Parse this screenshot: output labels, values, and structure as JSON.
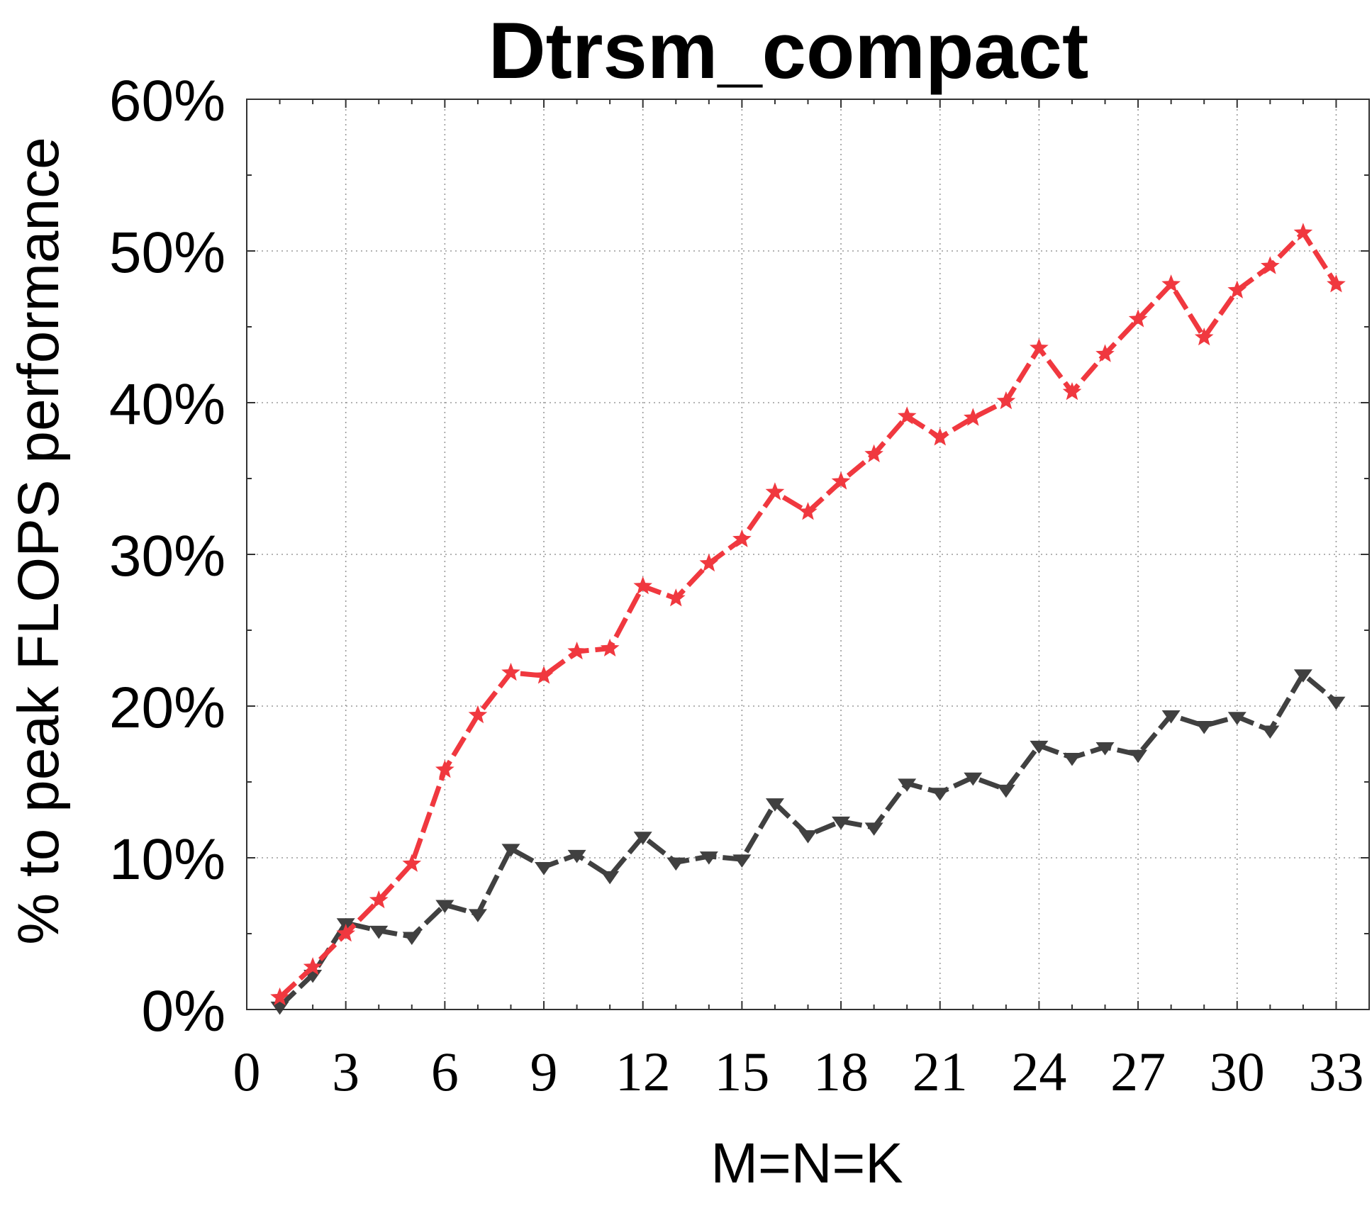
{
  "chart_data": {
    "type": "line",
    "title": "Dtrsm_compact",
    "xlabel": "M=N=K",
    "ylabel": "% to peak FLOPS performance",
    "xlim": [
      0,
      34
    ],
    "ylim": [
      0,
      60
    ],
    "xticks": [
      "0",
      "3",
      "6",
      "9",
      "12",
      "15",
      "18",
      "21",
      "24",
      "27",
      "30",
      "33"
    ],
    "yticks": [
      "0%",
      "10%",
      "20%",
      "30%",
      "40%",
      "50%",
      "60%"
    ],
    "grid": true,
    "x": [
      1,
      2,
      3,
      4,
      5,
      6,
      7,
      8,
      9,
      10,
      11,
      12,
      13,
      14,
      15,
      16,
      17,
      18,
      19,
      20,
      21,
      22,
      23,
      24,
      25,
      26,
      27,
      28,
      29,
      30,
      31,
      32,
      33
    ],
    "series": [
      {
        "color": "#f0383f",
        "marker": "star",
        "values": [
          0.8,
          2.8,
          5.0,
          7.2,
          9.6,
          15.8,
          19.4,
          22.2,
          22.0,
          23.6,
          23.8,
          27.9,
          27.1,
          29.4,
          31.0,
          34.1,
          32.8,
          34.8,
          36.6,
          39.1,
          37.7,
          39.0,
          40.1,
          43.6,
          40.7,
          43.2,
          45.5,
          47.8,
          44.3,
          47.4,
          49.0,
          51.2,
          47.8
        ]
      },
      {
        "color": "#404040",
        "marker": "triangle-down",
        "values": [
          0.2,
          2.3,
          5.7,
          5.2,
          4.8,
          6.9,
          6.3,
          10.6,
          9.4,
          10.2,
          8.8,
          11.4,
          9.7,
          10.1,
          9.9,
          13.6,
          11.5,
          12.4,
          12.0,
          14.9,
          14.3,
          15.3,
          14.5,
          17.4,
          16.6,
          17.3,
          16.8,
          19.4,
          18.7,
          19.3,
          18.4,
          22.1,
          20.3
        ]
      }
    ]
  }
}
